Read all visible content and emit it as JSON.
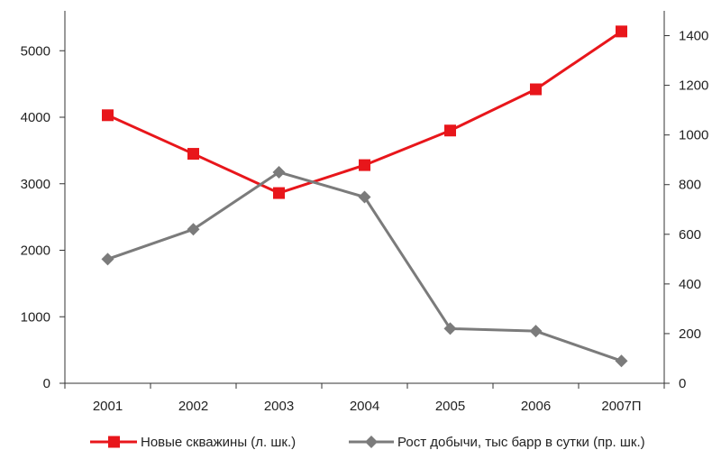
{
  "chart_data": {
    "type": "line",
    "categories": [
      "2001",
      "2002",
      "2003",
      "2004",
      "2005",
      "2006",
      "2007П"
    ],
    "series": [
      {
        "name": "Новые скважины (л. шк.)",
        "axis": "left",
        "color": "#e8161b",
        "marker": "square",
        "values": [
          4030,
          3450,
          2860,
          3280,
          3800,
          4420,
          5290
        ]
      },
      {
        "name": "Рост добычи, тыс барр в сутки (пр. шк.)",
        "axis": "right",
        "color": "#7b7b7b",
        "marker": "diamond",
        "values": [
          500,
          620,
          850,
          750,
          220,
          210,
          90
        ]
      }
    ],
    "left_axis": {
      "ylim": [
        0,
        5600
      ],
      "ticks": [
        "0",
        "1000",
        "2000",
        "3000",
        "4000",
        "5000"
      ]
    },
    "right_axis": {
      "ylim": [
        0,
        1500
      ],
      "ticks": [
        "0",
        "200",
        "400",
        "600",
        "800",
        "1000",
        "1200",
        "1400"
      ]
    },
    "grid": false,
    "legend": "bottom"
  }
}
